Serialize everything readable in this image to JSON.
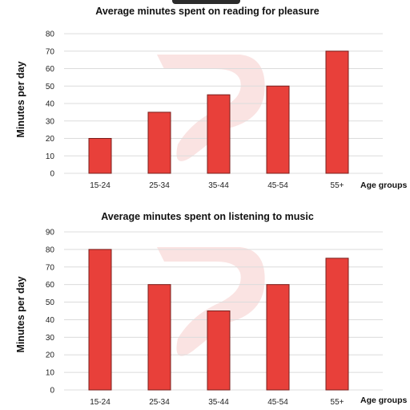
{
  "chart_data": [
    {
      "type": "bar",
      "title": "Average minutes spent on reading for pleasure",
      "ylabel": "Minutes per day",
      "xlabel": "Age groups",
      "categories": [
        "15-24",
        "25-34",
        "35-44",
        "45-54",
        "55+"
      ],
      "values": [
        20,
        35,
        45,
        50,
        70
      ],
      "ylim": [
        0,
        80
      ],
      "yticks": [
        0,
        10,
        20,
        30,
        40,
        50,
        60,
        70,
        80
      ],
      "grid": true,
      "bar_color": "#e8403a"
    },
    {
      "type": "bar",
      "title": "Average minutes spent on listening to music",
      "ylabel": "Minutes per day",
      "xlabel": "Age groups",
      "categories": [
        "15-24",
        "25-34",
        "35-44",
        "45-54",
        "55+"
      ],
      "values": [
        80,
        60,
        45,
        60,
        75
      ],
      "ylim": [
        0,
        90
      ],
      "yticks": [
        0,
        10,
        20,
        30,
        40,
        50,
        60,
        70,
        80,
        90
      ],
      "grid": true,
      "bar_color": "#e8403a"
    }
  ]
}
